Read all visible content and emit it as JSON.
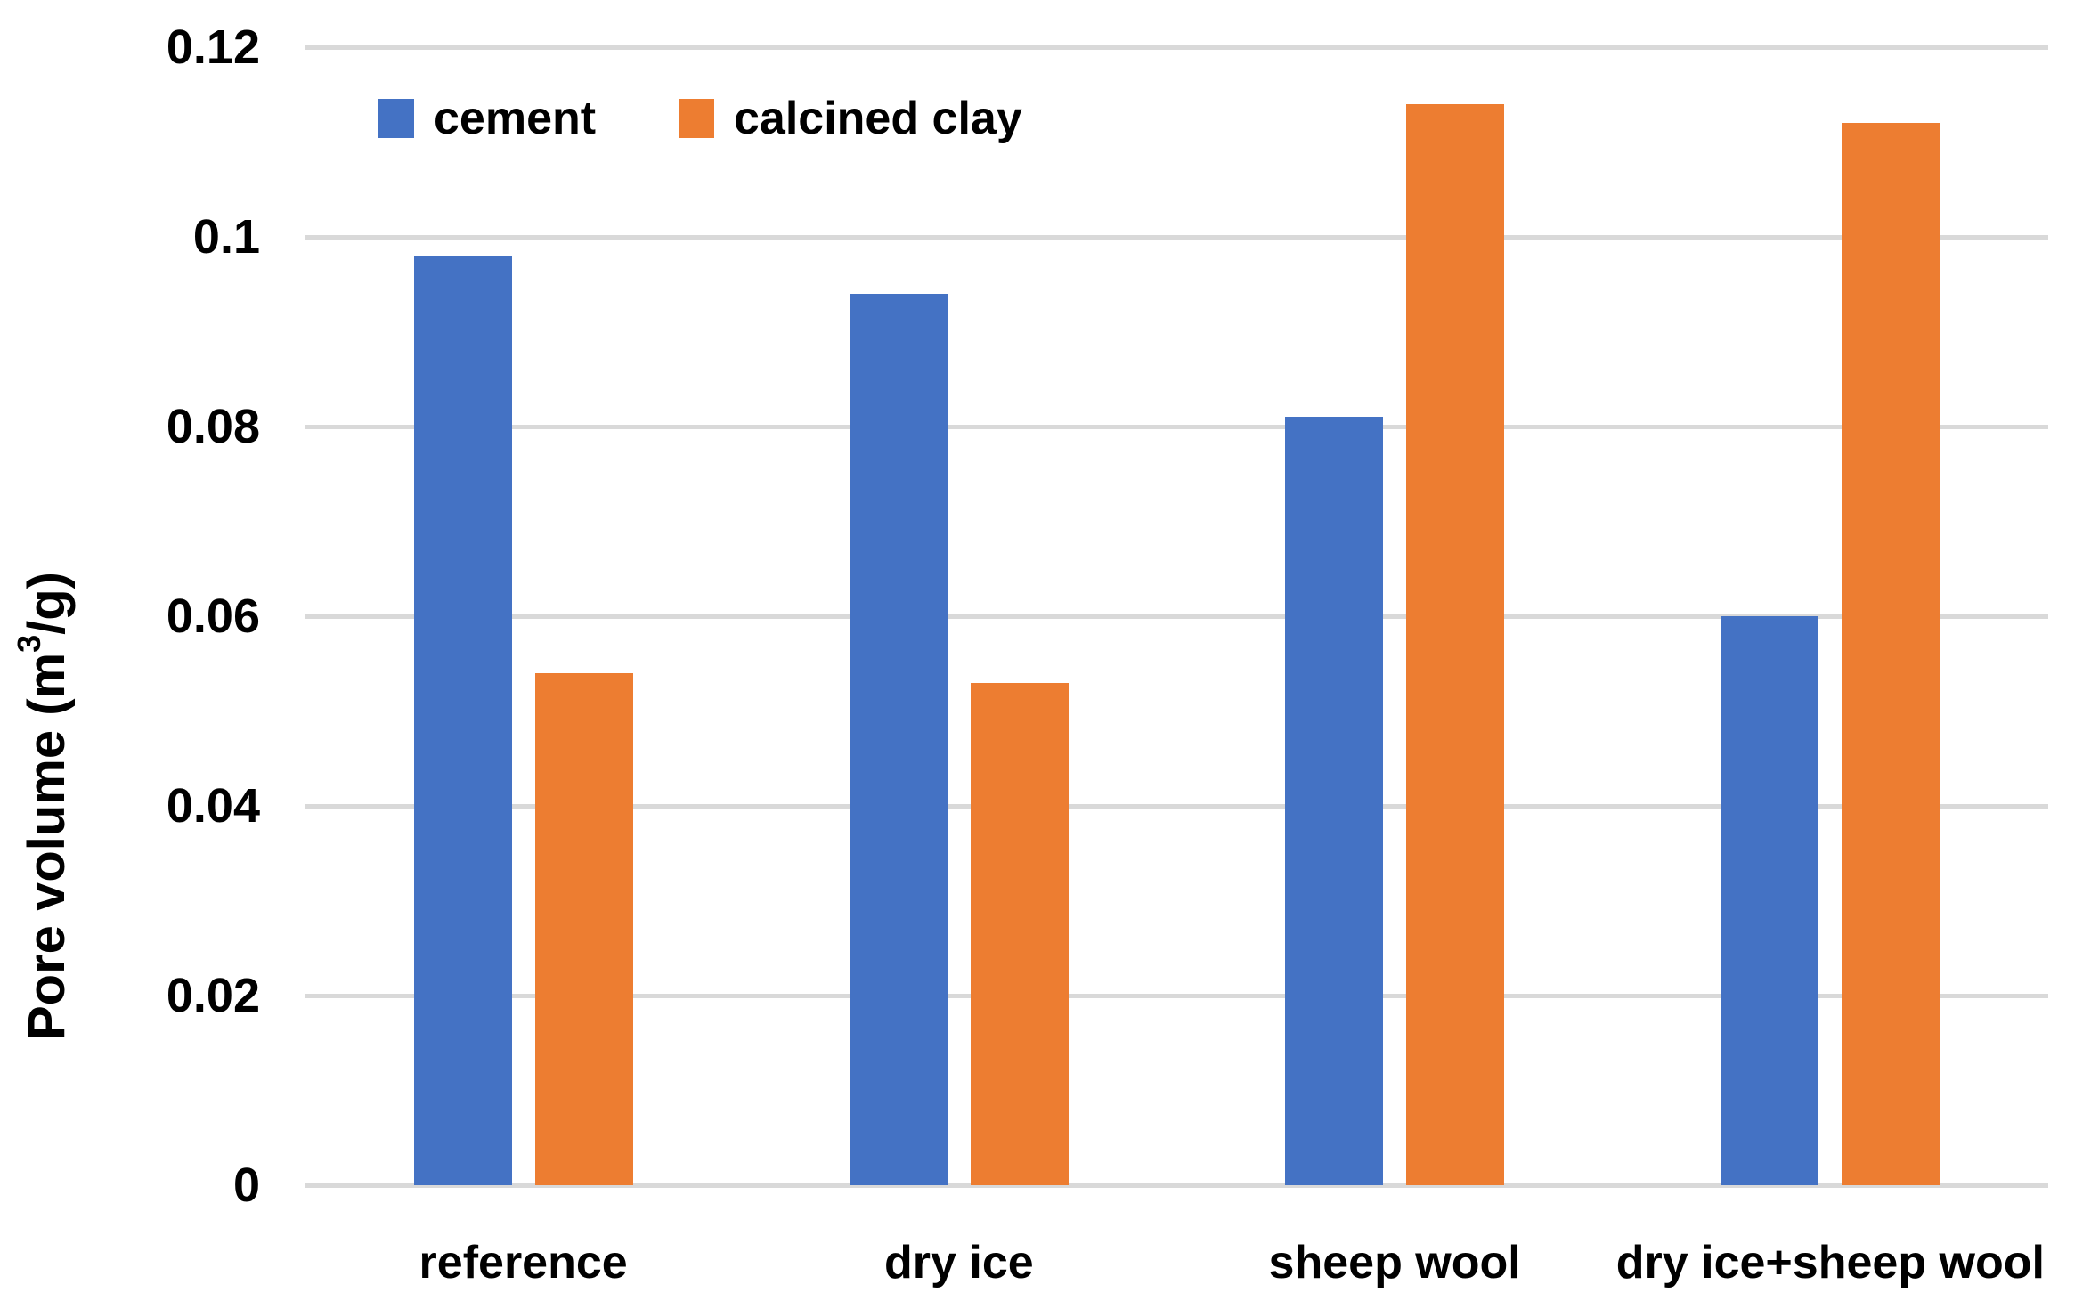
{
  "chart_data": {
    "type": "bar",
    "title": "",
    "categories": [
      "reference",
      "dry ice",
      "sheep wool",
      "dry ice+sheep wool"
    ],
    "series": [
      {
        "name": "cement",
        "color": "#4472C4",
        "values": [
          0.098,
          0.094,
          0.081,
          0.06
        ]
      },
      {
        "name": "calcined clay",
        "color": "#ED7D31",
        "values": [
          0.054,
          0.053,
          0.114,
          0.112
        ]
      }
    ],
    "xlabel": "",
    "ylabel": "Pore volume (m³/g)",
    "ylabel_parts": {
      "prefix": "Pore volume (m",
      "superscript": "3",
      "suffix": "/g)"
    },
    "ylim": [
      0,
      0.12
    ],
    "ytick_interval": 0.02,
    "ytick_labels": [
      "0",
      "0.02",
      "0.04",
      "0.06",
      "0.08",
      "0.1",
      "0.12"
    ],
    "grid": true,
    "legend_position": "top-left-inside",
    "colors": {
      "gridline": "#D9D9D9",
      "text": "#000000",
      "background": "#FFFFFF"
    }
  }
}
